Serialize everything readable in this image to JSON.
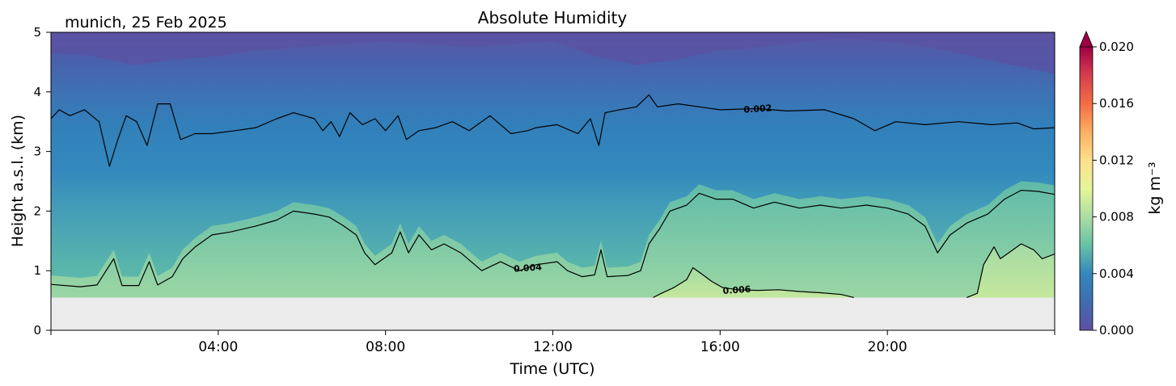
{
  "chart_data": {
    "type": "heatmap",
    "title": "Absolute Humidity",
    "location_date": "munich, 25 Feb 2025",
    "xlabel": "Time (UTC)",
    "ylabel": "Height a.s.l. (km)",
    "x_range_hours": [
      0,
      24
    ],
    "ylim": [
      0,
      5
    ],
    "x_ticks": [
      {
        "hour": 4,
        "label": "04:00"
      },
      {
        "hour": 8,
        "label": "08:00"
      },
      {
        "hour": 12,
        "label": "12:00"
      },
      {
        "hour": 16,
        "label": "16:00"
      },
      {
        "hour": 20,
        "label": "20:00"
      }
    ],
    "y_ticks": [
      {
        "value": 0,
        "label": "0"
      },
      {
        "value": 1,
        "label": "1"
      },
      {
        "value": 2,
        "label": "2"
      },
      {
        "value": 3,
        "label": "3"
      },
      {
        "value": 4,
        "label": "4"
      },
      {
        "value": 5,
        "label": "5"
      }
    ],
    "data_floor_km": 0.55,
    "colorbar": {
      "label": "kg m⁻³",
      "min": 0.0,
      "max": 0.02,
      "extend": "max",
      "colormap": "Spectral_r",
      "ticks": [
        {
          "value": 0.0,
          "label": "0.000"
        },
        {
          "value": 0.004,
          "label": "0.004"
        },
        {
          "value": 0.008,
          "label": "0.008"
        },
        {
          "value": 0.012,
          "label": "0.012"
        },
        {
          "value": 0.016,
          "label": "0.016"
        },
        {
          "value": 0.02,
          "label": "0.020"
        }
      ]
    },
    "contour_lines": [
      {
        "level": 0.002,
        "label": "0.002",
        "label_at_hour": 16.9,
        "points": [
          [
            0.0,
            3.55
          ],
          [
            0.2,
            3.7
          ],
          [
            0.45,
            3.6
          ],
          [
            0.8,
            3.7
          ],
          [
            1.15,
            3.5
          ],
          [
            1.4,
            2.75
          ],
          [
            1.6,
            3.2
          ],
          [
            1.8,
            3.6
          ],
          [
            2.05,
            3.5
          ],
          [
            2.3,
            3.1
          ],
          [
            2.55,
            3.8
          ],
          [
            2.85,
            3.8
          ],
          [
            3.1,
            3.2
          ],
          [
            3.45,
            3.3
          ],
          [
            3.85,
            3.3
          ],
          [
            4.4,
            3.35
          ],
          [
            4.9,
            3.4
          ],
          [
            5.4,
            3.55
          ],
          [
            5.8,
            3.65
          ],
          [
            6.3,
            3.55
          ],
          [
            6.5,
            3.35
          ],
          [
            6.7,
            3.5
          ],
          [
            6.9,
            3.25
          ],
          [
            7.15,
            3.65
          ],
          [
            7.45,
            3.45
          ],
          [
            7.75,
            3.55
          ],
          [
            8.0,
            3.35
          ],
          [
            8.3,
            3.6
          ],
          [
            8.5,
            3.2
          ],
          [
            8.8,
            3.35
          ],
          [
            9.2,
            3.4
          ],
          [
            9.6,
            3.5
          ],
          [
            10.0,
            3.35
          ],
          [
            10.5,
            3.6
          ],
          [
            11.0,
            3.3
          ],
          [
            11.4,
            3.35
          ],
          [
            11.6,
            3.4
          ],
          [
            12.1,
            3.45
          ],
          [
            12.6,
            3.3
          ],
          [
            12.9,
            3.55
          ],
          [
            13.1,
            3.1
          ],
          [
            13.25,
            3.65
          ],
          [
            13.6,
            3.7
          ],
          [
            14.0,
            3.75
          ],
          [
            14.3,
            3.95
          ],
          [
            14.5,
            3.75
          ],
          [
            15.0,
            3.8
          ],
          [
            15.5,
            3.75
          ],
          [
            16.0,
            3.7
          ],
          [
            16.9,
            3.72
          ],
          [
            17.6,
            3.68
          ],
          [
            18.5,
            3.7
          ],
          [
            19.2,
            3.55
          ],
          [
            19.7,
            3.35
          ],
          [
            20.2,
            3.5
          ],
          [
            20.9,
            3.45
          ],
          [
            21.7,
            3.5
          ],
          [
            22.5,
            3.45
          ],
          [
            23.1,
            3.48
          ],
          [
            23.5,
            3.38
          ],
          [
            24.0,
            3.4
          ]
        ]
      },
      {
        "level": 0.004,
        "label": "0.004",
        "label_at_hour": 11.4,
        "points": [
          [
            0.0,
            0.77
          ],
          [
            0.7,
            0.73
          ],
          [
            1.1,
            0.76
          ],
          [
            1.5,
            1.2
          ],
          [
            1.7,
            0.75
          ],
          [
            2.1,
            0.75
          ],
          [
            2.35,
            1.15
          ],
          [
            2.55,
            0.76
          ],
          [
            2.9,
            0.9
          ],
          [
            3.15,
            1.2
          ],
          [
            3.45,
            1.4
          ],
          [
            3.85,
            1.6
          ],
          [
            4.3,
            1.65
          ],
          [
            4.9,
            1.75
          ],
          [
            5.4,
            1.85
          ],
          [
            5.8,
            2.0
          ],
          [
            6.3,
            1.95
          ],
          [
            6.65,
            1.9
          ],
          [
            7.0,
            1.75
          ],
          [
            7.3,
            1.6
          ],
          [
            7.5,
            1.3
          ],
          [
            7.75,
            1.1
          ],
          [
            8.15,
            1.3
          ],
          [
            8.35,
            1.65
          ],
          [
            8.55,
            1.3
          ],
          [
            8.8,
            1.6
          ],
          [
            9.1,
            1.35
          ],
          [
            9.4,
            1.45
          ],
          [
            9.8,
            1.3
          ],
          [
            10.3,
            1.0
          ],
          [
            10.75,
            1.15
          ],
          [
            11.2,
            1.0
          ],
          [
            11.6,
            1.1
          ],
          [
            12.1,
            1.15
          ],
          [
            12.35,
            1.0
          ],
          [
            12.7,
            0.9
          ],
          [
            13.0,
            0.93
          ],
          [
            13.15,
            1.35
          ],
          [
            13.3,
            0.9
          ],
          [
            13.8,
            0.92
          ],
          [
            14.1,
            1.0
          ],
          [
            14.3,
            1.45
          ],
          [
            14.55,
            1.7
          ],
          [
            14.8,
            2.0
          ],
          [
            15.2,
            2.1
          ],
          [
            15.5,
            2.3
          ],
          [
            15.9,
            2.2
          ],
          [
            16.3,
            2.2
          ],
          [
            16.8,
            2.05
          ],
          [
            17.3,
            2.15
          ],
          [
            17.9,
            2.05
          ],
          [
            18.4,
            2.1
          ],
          [
            18.9,
            2.05
          ],
          [
            19.5,
            2.1
          ],
          [
            20.0,
            2.05
          ],
          [
            20.5,
            1.95
          ],
          [
            20.9,
            1.75
          ],
          [
            21.2,
            1.3
          ],
          [
            21.5,
            1.6
          ],
          [
            21.9,
            1.8
          ],
          [
            22.4,
            1.95
          ],
          [
            22.8,
            2.2
          ],
          [
            23.2,
            2.35
          ],
          [
            23.6,
            2.33
          ],
          [
            24.0,
            2.28
          ]
        ]
      },
      {
        "level": 0.006,
        "label": "0.006",
        "label_at_hour": 16.4,
        "points": [
          [
            14.4,
            0.55
          ],
          [
            14.6,
            0.62
          ],
          [
            14.9,
            0.72
          ],
          [
            15.2,
            0.85
          ],
          [
            15.35,
            1.05
          ],
          [
            15.55,
            0.95
          ],
          [
            15.8,
            0.82
          ],
          [
            16.05,
            0.72
          ],
          [
            16.4,
            0.68
          ],
          [
            16.9,
            0.67
          ],
          [
            17.4,
            0.68
          ],
          [
            17.9,
            0.65
          ],
          [
            18.4,
            0.63
          ],
          [
            18.9,
            0.6
          ],
          [
            19.2,
            0.55
          ]
        ]
      },
      {
        "level": 0.006,
        "label": "",
        "label_at_hour": null,
        "points": [
          [
            21.9,
            0.55
          ],
          [
            22.15,
            0.62
          ],
          [
            22.3,
            1.1
          ],
          [
            22.55,
            1.4
          ],
          [
            22.7,
            1.2
          ],
          [
            22.9,
            1.3
          ],
          [
            23.2,
            1.45
          ],
          [
            23.5,
            1.35
          ],
          [
            23.7,
            1.2
          ],
          [
            24.0,
            1.28
          ]
        ]
      }
    ]
  }
}
